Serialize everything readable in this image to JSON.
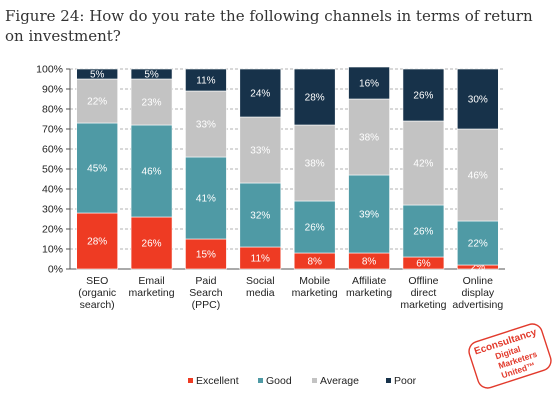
{
  "figure_title": "Figure 24: How do you rate the following channels in terms of return on investment?",
  "chart_data": {
    "type": "bar",
    "stacked": true,
    "percent_stacked": true,
    "categories": [
      [
        "SEO",
        "(organic",
        "search)"
      ],
      [
        "Email",
        "marketing"
      ],
      [
        "Paid",
        "Search",
        "(PPC)"
      ],
      [
        "Social",
        "media"
      ],
      [
        "Mobile",
        "marketing"
      ],
      [
        "Affiliate",
        "marketing"
      ],
      [
        "Offline",
        "direct",
        "marketing"
      ],
      [
        "Online",
        "display",
        "advertising"
      ]
    ],
    "series": [
      {
        "name": "Excellent",
        "color": "#ee3b23",
        "values": [
          28,
          26,
          15,
          11,
          8,
          8,
          6,
          2
        ]
      },
      {
        "name": "Good",
        "color": "#4f9aa5",
        "values": [
          45,
          46,
          41,
          32,
          26,
          39,
          26,
          22
        ]
      },
      {
        "name": "Average",
        "color": "#c3c3c3",
        "values": [
          22,
          23,
          33,
          33,
          38,
          38,
          42,
          46
        ]
      },
      {
        "name": "Poor",
        "color": "#17324a",
        "values": [
          5,
          5,
          11,
          24,
          28,
          16,
          26,
          30
        ]
      }
    ],
    "value_labels": [
      [
        "28%",
        "45%",
        "22%",
        "5%"
      ],
      [
        "26%",
        "46%",
        "23%",
        "5%"
      ],
      [
        "15%",
        "41%",
        "33%",
        "11%"
      ],
      [
        "11%",
        "32%",
        "33%",
        "24%"
      ],
      [
        "8%",
        "26%",
        "38%",
        "28%"
      ],
      [
        "8%",
        "39%",
        "38%",
        "16%"
      ],
      [
        "6%",
        "26%",
        "42%",
        "26%"
      ],
      [
        "2%",
        "22%",
        "46%",
        "30%"
      ]
    ],
    "yticks": [
      "0%",
      "10%",
      "20%",
      "30%",
      "40%",
      "50%",
      "60%",
      "70%",
      "80%",
      "90%",
      "100%"
    ],
    "ylim": [
      0,
      100
    ],
    "grid": true,
    "legend_position": "bottom"
  },
  "stamp": {
    "lines": [
      "Econsultancy",
      "Digital",
      "Marketers",
      "United™"
    ],
    "color": "#e23a2c"
  }
}
